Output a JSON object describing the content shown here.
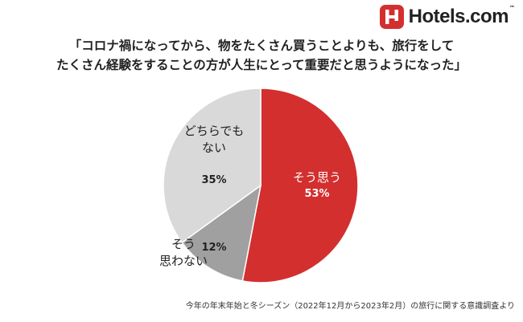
{
  "brand": {
    "name": "Hotels.com",
    "tm": "™",
    "color": "#d32f2f"
  },
  "title": {
    "line1": "「コロナ禍になってから、物をたくさん買うことよりも、旅行をして",
    "line2": "たくさん経験をすることの方が人生にとって重要だと思うようになった」"
  },
  "chart_data": {
    "type": "pie",
    "slices": [
      {
        "label_lines": [
          "そう思う"
        ],
        "value": 53,
        "value_label": "53%",
        "color": "#d32f2f",
        "label_color": "#ffffff",
        "label_position": "inside"
      },
      {
        "label_lines": [
          "そう",
          "思わない"
        ],
        "value": 12,
        "value_label": "12%",
        "color": "#a0a0a0",
        "label_color": "#222222",
        "label_position": "outside"
      },
      {
        "label_lines": [
          "どちらでも",
          "ない"
        ],
        "value": 35,
        "value_label": "35%",
        "color": "#d9d9d9",
        "label_color": "#222222",
        "label_position": "inside"
      }
    ]
  },
  "footnote": "今年の年末年始と冬シーズン（2022年12月から2023年2月）の旅行に関する意識調査より"
}
